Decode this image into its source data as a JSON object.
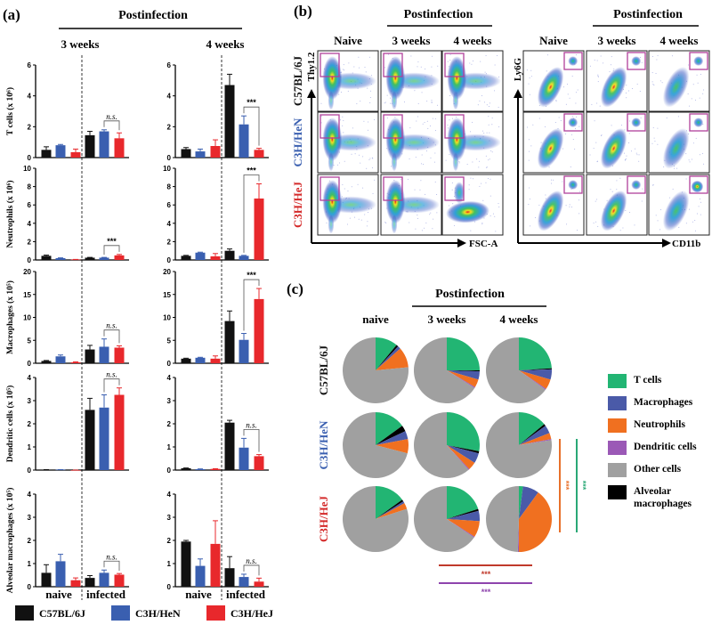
{
  "panel_a": {
    "label": "(a)",
    "group_title": "Postinfection",
    "timepoints": [
      "3 weeks",
      "4 weeks"
    ],
    "x_groups": [
      "naive",
      "infected"
    ],
    "legend": [
      {
        "name": "C57BL/6J",
        "color": "#111111"
      },
      {
        "name": "C3H/HeN",
        "color": "#3a5fb0"
      },
      {
        "name": "C3H/HeJ",
        "color": "#e8282c"
      }
    ]
  },
  "panel_b": {
    "label": "(b)",
    "rows": [
      {
        "name": "C57BL/6J",
        "color": "#111111"
      },
      {
        "name": "C3H/HeN",
        "color": "#3a5fb0"
      },
      {
        "name": "C3H/HeJ",
        "color": "#d42a2a"
      }
    ],
    "groups": [
      {
        "title": "Postinfection",
        "columns": [
          "Naive",
          "3 weeks",
          "4 weeks"
        ],
        "y_axis": "Thy1.2",
        "x_axis": "FSC-A"
      },
      {
        "title": "Postinfection",
        "columns": [
          "Naive",
          "3 weeks",
          "4 weeks"
        ],
        "y_axis": "Ly6G",
        "x_axis": "CD11b"
      }
    ],
    "gate_color": "#b0409a"
  },
  "panel_c": {
    "label": "(c)",
    "title": "Postinfection",
    "columns": [
      "naive",
      "3 weeks",
      "4 weeks"
    ],
    "rows": [
      {
        "name": "C57BL/6J",
        "color": "#111111"
      },
      {
        "name": "C3H/HeN",
        "color": "#3a5fb0"
      },
      {
        "name": "C3H/HeJ",
        "color": "#d42a2a"
      }
    ],
    "legend": [
      {
        "name": "T cells",
        "color": "#22b573"
      },
      {
        "name": "Macrophages",
        "color": "#4a5aa8"
      },
      {
        "name": "Neutrophils",
        "color": "#f07020"
      },
      {
        "name": "Dendritic cells",
        "color": "#9b59b6"
      },
      {
        "name": "Other cells",
        "color": "#a0a0a0"
      },
      {
        "name": "Alveolar macrophages",
        "color": "#000000"
      }
    ],
    "significance": [
      {
        "label": "***",
        "color": "#e8702a",
        "orientation": "vertical"
      },
      {
        "label": "***",
        "color": "#2aa876",
        "orientation": "vertical"
      },
      {
        "label": "***",
        "color": "#c0392b",
        "orientation": "horizontal"
      },
      {
        "label": "***",
        "color": "#8e44ad",
        "orientation": "horizontal"
      }
    ]
  },
  "chart_data": [
    {
      "type": "bar",
      "title": "T cells",
      "timepoint": "3 weeks",
      "ylabel": "T cells (x 10⁶)",
      "ylim": [
        0,
        6
      ],
      "yticks": [
        0,
        2,
        4,
        6
      ],
      "categories": [
        "naive C57BL/6J",
        "naive C3H/HeN",
        "naive C3H/HeJ",
        "infected C57BL/6J",
        "infected C3H/HeN",
        "infected C3H/HeJ"
      ],
      "values": [
        0.5,
        0.8,
        0.35,
        1.45,
        1.7,
        1.25
      ],
      "errors": [
        0.2,
        0.05,
        0.2,
        0.25,
        0.1,
        0.35
      ],
      "significance": {
        "between": [
          4,
          5
        ],
        "label": "n.s."
      }
    },
    {
      "type": "bar",
      "title": "T cells",
      "timepoint": "4 weeks",
      "ylabel": "",
      "ylim": [
        0,
        6
      ],
      "yticks": [
        0,
        2,
        4,
        6
      ],
      "categories": [
        "naive C57BL/6J",
        "naive C3H/HeN",
        "naive C3H/HeJ",
        "infected C57BL/6J",
        "infected C3H/HeN",
        "infected C3H/HeJ"
      ],
      "values": [
        0.55,
        0.4,
        0.75,
        4.7,
        2.15,
        0.5
      ],
      "errors": [
        0.1,
        0.15,
        0.4,
        0.7,
        0.55,
        0.1
      ],
      "significance": {
        "between": [
          4,
          5
        ],
        "label": "***"
      }
    },
    {
      "type": "bar",
      "title": "Neutrophils",
      "timepoint": "3 weeks",
      "ylabel": "Neutrophils (x 10⁶)",
      "ylim": [
        0,
        10
      ],
      "yticks": [
        0,
        2,
        4,
        6,
        8,
        10
      ],
      "categories": [
        "naive C57BL/6J",
        "naive C3H/HeN",
        "naive C3H/HeJ",
        "infected C57BL/6J",
        "infected C3H/HeN",
        "infected C3H/HeJ"
      ],
      "values": [
        0.45,
        0.2,
        0.05,
        0.25,
        0.25,
        0.5
      ],
      "errors": [
        0.08,
        0.03,
        0.01,
        0.03,
        0.03,
        0.1
      ],
      "significance": {
        "between": [
          4,
          5
        ],
        "label": "***"
      }
    },
    {
      "type": "bar",
      "title": "Neutrophils",
      "timepoint": "4 weeks",
      "ylabel": "",
      "ylim": [
        0,
        10
      ],
      "yticks": [
        0,
        2,
        4,
        6,
        8,
        10
      ],
      "categories": [
        "naive C57BL/6J",
        "naive C3H/HeN",
        "naive C3H/HeJ",
        "infected C57BL/6J",
        "infected C3H/HeN",
        "infected C3H/HeJ"
      ],
      "values": [
        0.45,
        0.8,
        0.4,
        1.0,
        0.45,
        6.7
      ],
      "errors": [
        0.05,
        0.05,
        0.3,
        0.2,
        0.05,
        1.6
      ],
      "significance": {
        "between": [
          4,
          5
        ],
        "label": "***"
      }
    },
    {
      "type": "bar",
      "title": "Macrophages",
      "timepoint": "3 weeks",
      "ylabel": "Macrophages (x 10⁵)",
      "ylim": [
        0,
        20
      ],
      "yticks": [
        0,
        5,
        10,
        15,
        20
      ],
      "categories": [
        "naive C57BL/6J",
        "naive C3H/HeN",
        "naive C3H/HeJ",
        "infected C57BL/6J",
        "infected C3H/HeN",
        "infected C3H/HeJ"
      ],
      "values": [
        0.5,
        1.5,
        0.2,
        3.0,
        3.6,
        3.4
      ],
      "errors": [
        0.1,
        0.3,
        0.1,
        0.9,
        1.7,
        0.4
      ],
      "significance": {
        "between": [
          4,
          5
        ],
        "label": "n.s."
      }
    },
    {
      "type": "bar",
      "title": "Macrophages",
      "timepoint": "4 weeks",
      "ylabel": "",
      "ylim": [
        0,
        20
      ],
      "yticks": [
        0,
        5,
        10,
        15,
        20
      ],
      "categories": [
        "naive C57BL/6J",
        "naive C3H/HeN",
        "naive C3H/HeJ",
        "infected C57BL/6J",
        "infected C3H/HeN",
        "infected C3H/HeJ"
      ],
      "values": [
        1.0,
        1.2,
        1.0,
        9.2,
        5.1,
        14.0
      ],
      "errors": [
        0.1,
        0.1,
        0.6,
        2.2,
        1.4,
        2.3
      ],
      "significance": {
        "between": [
          4,
          5
        ],
        "label": "***"
      }
    },
    {
      "type": "bar",
      "title": "Dendritic cells",
      "timepoint": "3 weeks",
      "ylabel": "Dendritic cells (x 10⁵)",
      "ylim": [
        0,
        4
      ],
      "yticks": [
        0,
        1,
        2,
        3,
        4
      ],
      "categories": [
        "naive C57BL/6J",
        "naive C3H/HeN",
        "naive C3H/HeJ",
        "infected C57BL/6J",
        "infected C3H/HeN",
        "infected C3H/HeJ"
      ],
      "values": [
        0.02,
        0.02,
        0.0,
        2.6,
        2.7,
        3.25
      ],
      "errors": [
        0.0,
        0.0,
        0.0,
        0.5,
        0.55,
        0.3
      ],
      "significance": {
        "between": [
          4,
          5
        ],
        "label": "n.s."
      }
    },
    {
      "type": "bar",
      "title": "Dendritic cells",
      "timepoint": "4 weeks",
      "ylabel": "",
      "ylim": [
        0,
        4
      ],
      "yticks": [
        0,
        1,
        2,
        3,
        4
      ],
      "categories": [
        "naive C57BL/6J",
        "naive C3H/HeN",
        "naive C3H/HeJ",
        "infected C57BL/6J",
        "infected C3H/HeN",
        "infected C3H/HeJ"
      ],
      "values": [
        0.08,
        0.04,
        0.05,
        2.05,
        0.97,
        0.6
      ],
      "errors": [
        0.01,
        0.01,
        0.01,
        0.1,
        0.4,
        0.07
      ],
      "significance": {
        "between": [
          4,
          5
        ],
        "label": "n.s."
      }
    },
    {
      "type": "bar",
      "title": "Alveolar macrophages",
      "timepoint": "3 weeks",
      "ylabel": "Alveolar macrophages (x 10⁵)",
      "ylim": [
        0,
        4
      ],
      "yticks": [
        0,
        1,
        2,
        3,
        4
      ],
      "categories": [
        "naive C57BL/6J",
        "naive C3H/HeN",
        "naive C3H/HeJ",
        "infected C57BL/6J",
        "infected C3H/HeN",
        "infected C3H/HeJ"
      ],
      "values": [
        0.6,
        1.1,
        0.28,
        0.38,
        0.6,
        0.52
      ],
      "errors": [
        0.35,
        0.3,
        0.1,
        0.1,
        0.12,
        0.05
      ],
      "significance": {
        "between": [
          4,
          5
        ],
        "label": "n.s."
      }
    },
    {
      "type": "bar",
      "title": "Alveolar macrophages",
      "timepoint": "4 weeks",
      "ylabel": "",
      "ylim": [
        0,
        4
      ],
      "yticks": [
        0,
        1,
        2,
        3,
        4
      ],
      "categories": [
        "naive C57BL/6J",
        "naive C3H/HeN",
        "naive C3H/HeJ",
        "infected C57BL/6J",
        "infected C3H/HeN",
        "infected C3H/HeJ"
      ],
      "values": [
        1.95,
        0.9,
        1.85,
        0.8,
        0.42,
        0.22
      ],
      "errors": [
        0.05,
        0.3,
        1.0,
        0.5,
        0.12,
        0.15
      ],
      "significance": {
        "between": [
          4,
          5
        ],
        "label": "n.s."
      }
    },
    {
      "type": "pie",
      "slice_order": [
        "T cells",
        "Alveolar macrophages",
        "Macrophages",
        "Neutrophils",
        "Dendritic cells",
        "Other cells"
      ],
      "pies": [
        {
          "strain": "C57BL/6J",
          "timepoint": "naive",
          "values": [
            0.11,
            0.01,
            0.015,
            0.1,
            0.0,
            0.765
          ]
        },
        {
          "strain": "C57BL/6J",
          "timepoint": "3 weeks",
          "values": [
            0.25,
            0.005,
            0.04,
            0.04,
            0.005,
            0.66
          ]
        },
        {
          "strain": "C57BL/6J",
          "timepoint": "4 weeks",
          "values": [
            0.24,
            0.005,
            0.05,
            0.05,
            0.005,
            0.65
          ]
        },
        {
          "strain": "C3H/HeN",
          "timepoint": "naive",
          "values": [
            0.15,
            0.03,
            0.04,
            0.07,
            0.0,
            0.71
          ]
        },
        {
          "strain": "C3H/HeN",
          "timepoint": "3 weeks",
          "values": [
            0.28,
            0.01,
            0.05,
            0.04,
            0.005,
            0.615
          ]
        },
        {
          "strain": "C3H/HeN",
          "timepoint": "4 weeks",
          "values": [
            0.14,
            0.01,
            0.04,
            0.03,
            0.005,
            0.775
          ]
        },
        {
          "strain": "C3H/HeJ",
          "timepoint": "naive",
          "values": [
            0.15,
            0.01,
            0.01,
            0.03,
            0.0,
            0.8
          ]
        },
        {
          "strain": "C3H/HeJ",
          "timepoint": "3 weeks",
          "values": [
            0.2,
            0.01,
            0.05,
            0.08,
            0.005,
            0.655
          ]
        },
        {
          "strain": "C3H/HeJ",
          "timepoint": "4 weeks",
          "values": [
            0.02,
            0.0,
            0.08,
            0.4,
            0.005,
            0.495
          ]
        }
      ]
    }
  ]
}
